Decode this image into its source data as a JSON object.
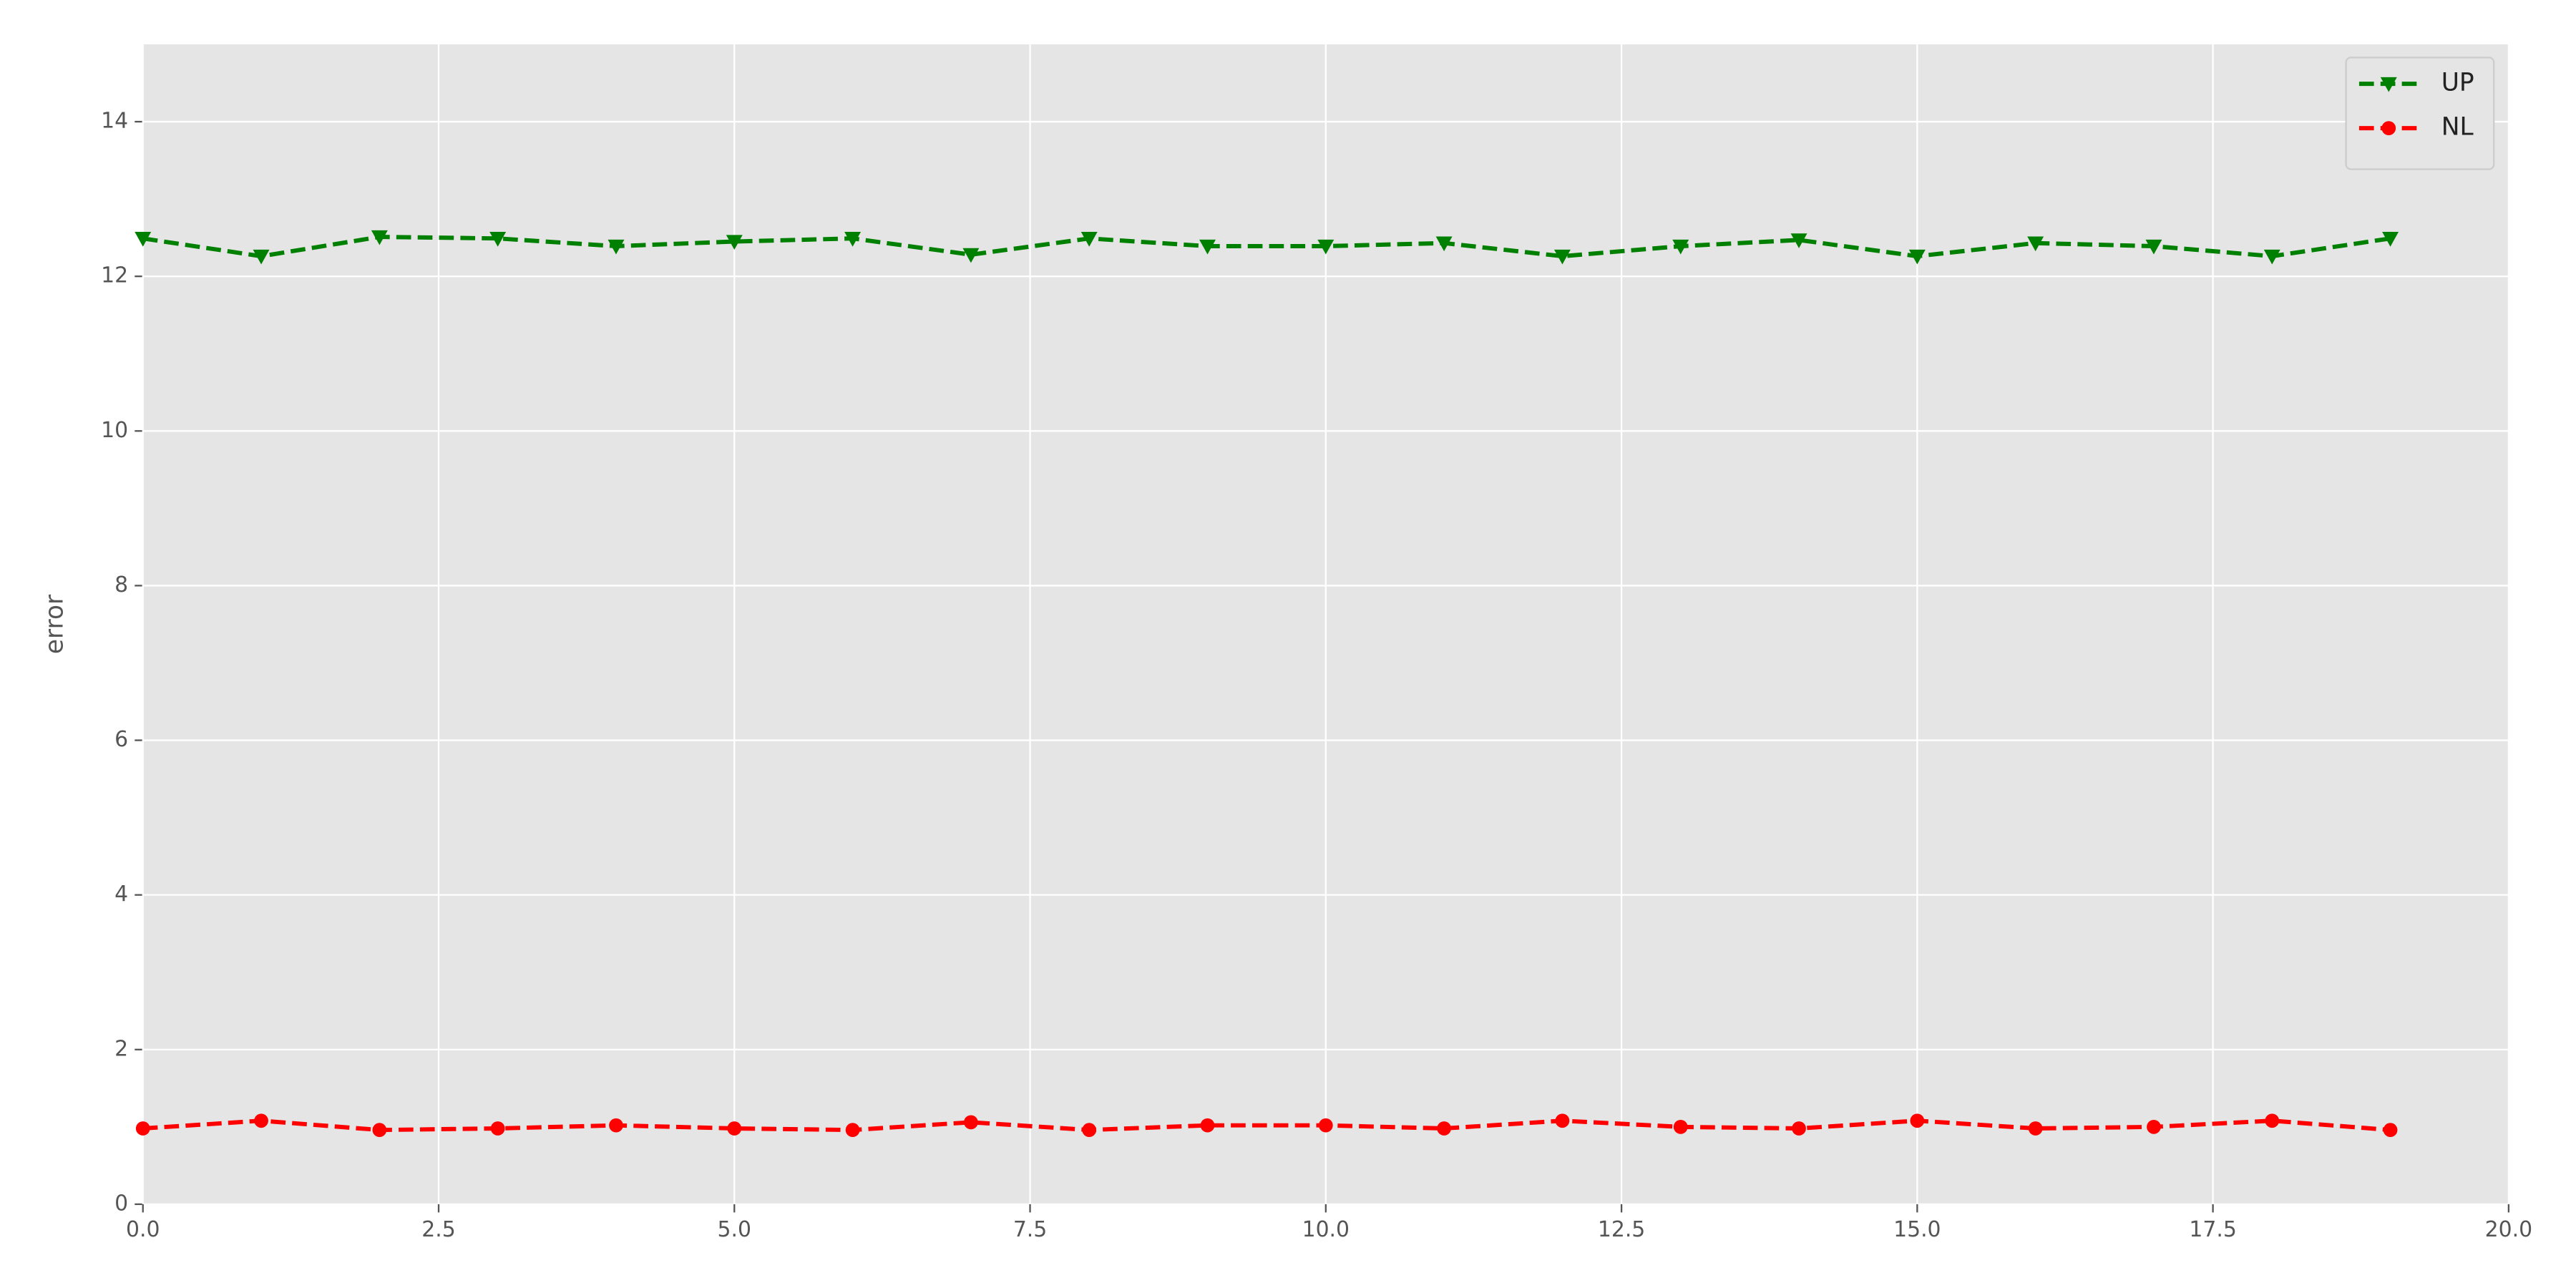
{
  "chart_data": {
    "type": "line",
    "y_label": "error",
    "x": [
      0,
      1,
      2,
      3,
      4,
      5,
      6,
      7,
      8,
      9,
      10,
      11,
      12,
      13,
      14,
      15,
      16,
      17,
      18,
      19
    ],
    "series": [
      {
        "name": "UP",
        "color": "#008000",
        "marker": "triangle-down",
        "values": [
          12.49,
          12.26,
          12.51,
          12.49,
          12.39,
          12.45,
          12.49,
          12.28,
          12.49,
          12.39,
          12.39,
          12.43,
          12.26,
          12.39,
          12.47,
          12.26,
          12.43,
          12.39,
          12.26,
          12.49
        ]
      },
      {
        "name": "NL",
        "color": "#ff0000",
        "marker": "circle",
        "values": [
          0.98,
          1.08,
          0.96,
          0.98,
          1.02,
          0.98,
          0.96,
          1.06,
          0.96,
          1.02,
          1.02,
          0.98,
          1.08,
          1.0,
          0.98,
          1.08,
          0.98,
          1.0,
          1.08,
          0.96
        ]
      }
    ],
    "xlim": [
      0,
      20
    ],
    "xticks": [
      {
        "value": 0,
        "label": "0.0"
      },
      2.5,
      {
        "value": 5,
        "label": "5.0"
      },
      7.5,
      {
        "value": 10,
        "label": "10.0"
      },
      12.5,
      {
        "value": 15,
        "label": "15.0"
      },
      17.5,
      {
        "value": 20,
        "label": "20.0"
      }
    ],
    "ylim": [
      0,
      15
    ],
    "yticks": [
      0,
      2,
      4,
      6,
      8,
      10,
      12,
      14
    ],
    "grid": true,
    "legend": "upper-right"
  }
}
